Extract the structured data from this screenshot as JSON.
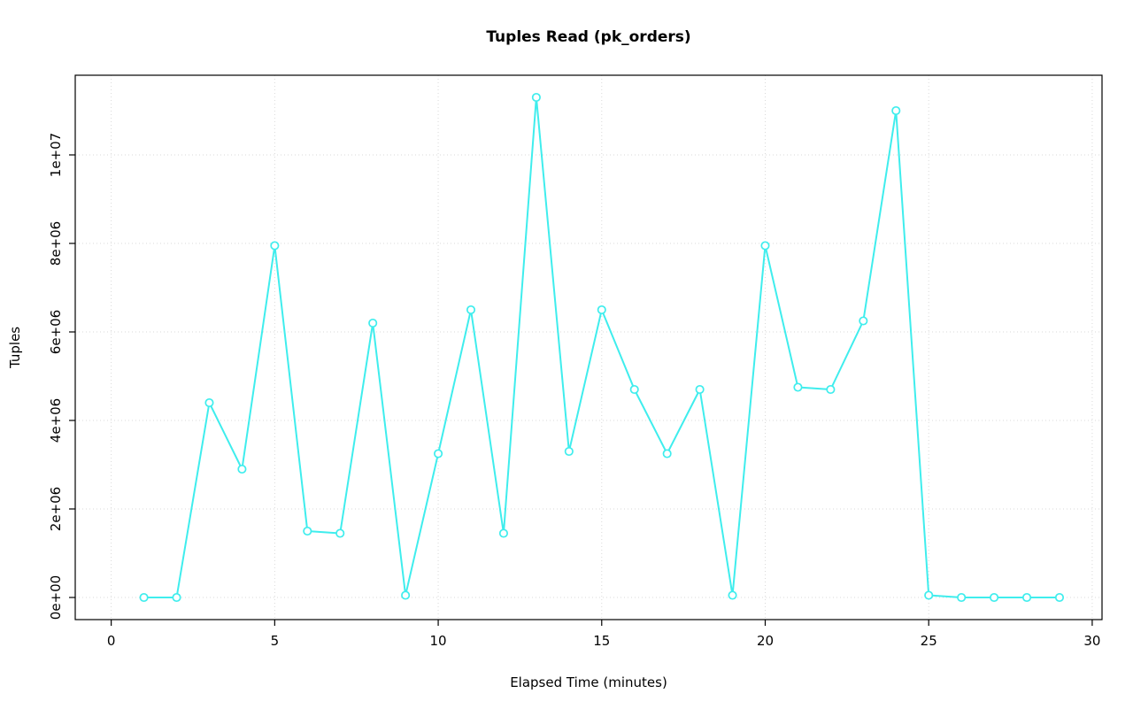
{
  "chart_data": {
    "type": "line",
    "title": "Tuples Read (pk_orders)",
    "xlabel": "Elapsed Time (minutes)",
    "ylabel": "Tuples",
    "x": [
      1,
      2,
      3,
      4,
      5,
      6,
      7,
      8,
      9,
      10,
      11,
      12,
      13,
      14,
      15,
      16,
      17,
      18,
      19,
      20,
      21,
      22,
      23,
      24,
      25,
      26,
      27,
      28,
      29
    ],
    "y": [
      0,
      0,
      4400000,
      2900000,
      7950000,
      1500000,
      1450000,
      6200000,
      50000,
      3250000,
      6500000,
      1450000,
      11300000,
      3300000,
      6500000,
      4700000,
      3250000,
      4700000,
      50000,
      7950000,
      4750000,
      4700000,
      6250000,
      11000000,
      50000,
      0,
      0,
      0,
      0
    ],
    "xlim": [
      -1.1,
      30.3
    ],
    "ylim": [
      -500000,
      11800000
    ],
    "x_ticks": [
      0,
      5,
      10,
      15,
      20,
      25,
      30
    ],
    "x_tick_labels": [
      "0",
      "5",
      "10",
      "15",
      "20",
      "25",
      "30"
    ],
    "y_ticks": [
      0,
      2000000,
      4000000,
      6000000,
      8000000,
      10000000
    ],
    "y_tick_labels": [
      "0e+00",
      "2e+06",
      "4e+06",
      "6e+06",
      "8e+06",
      "1e+07"
    ],
    "grid": true,
    "legend": "none",
    "colors": {
      "line": "#3FEDED",
      "marker_fill": "#ffffff",
      "grid": "#d9d9d9",
      "box": "#000000"
    }
  }
}
